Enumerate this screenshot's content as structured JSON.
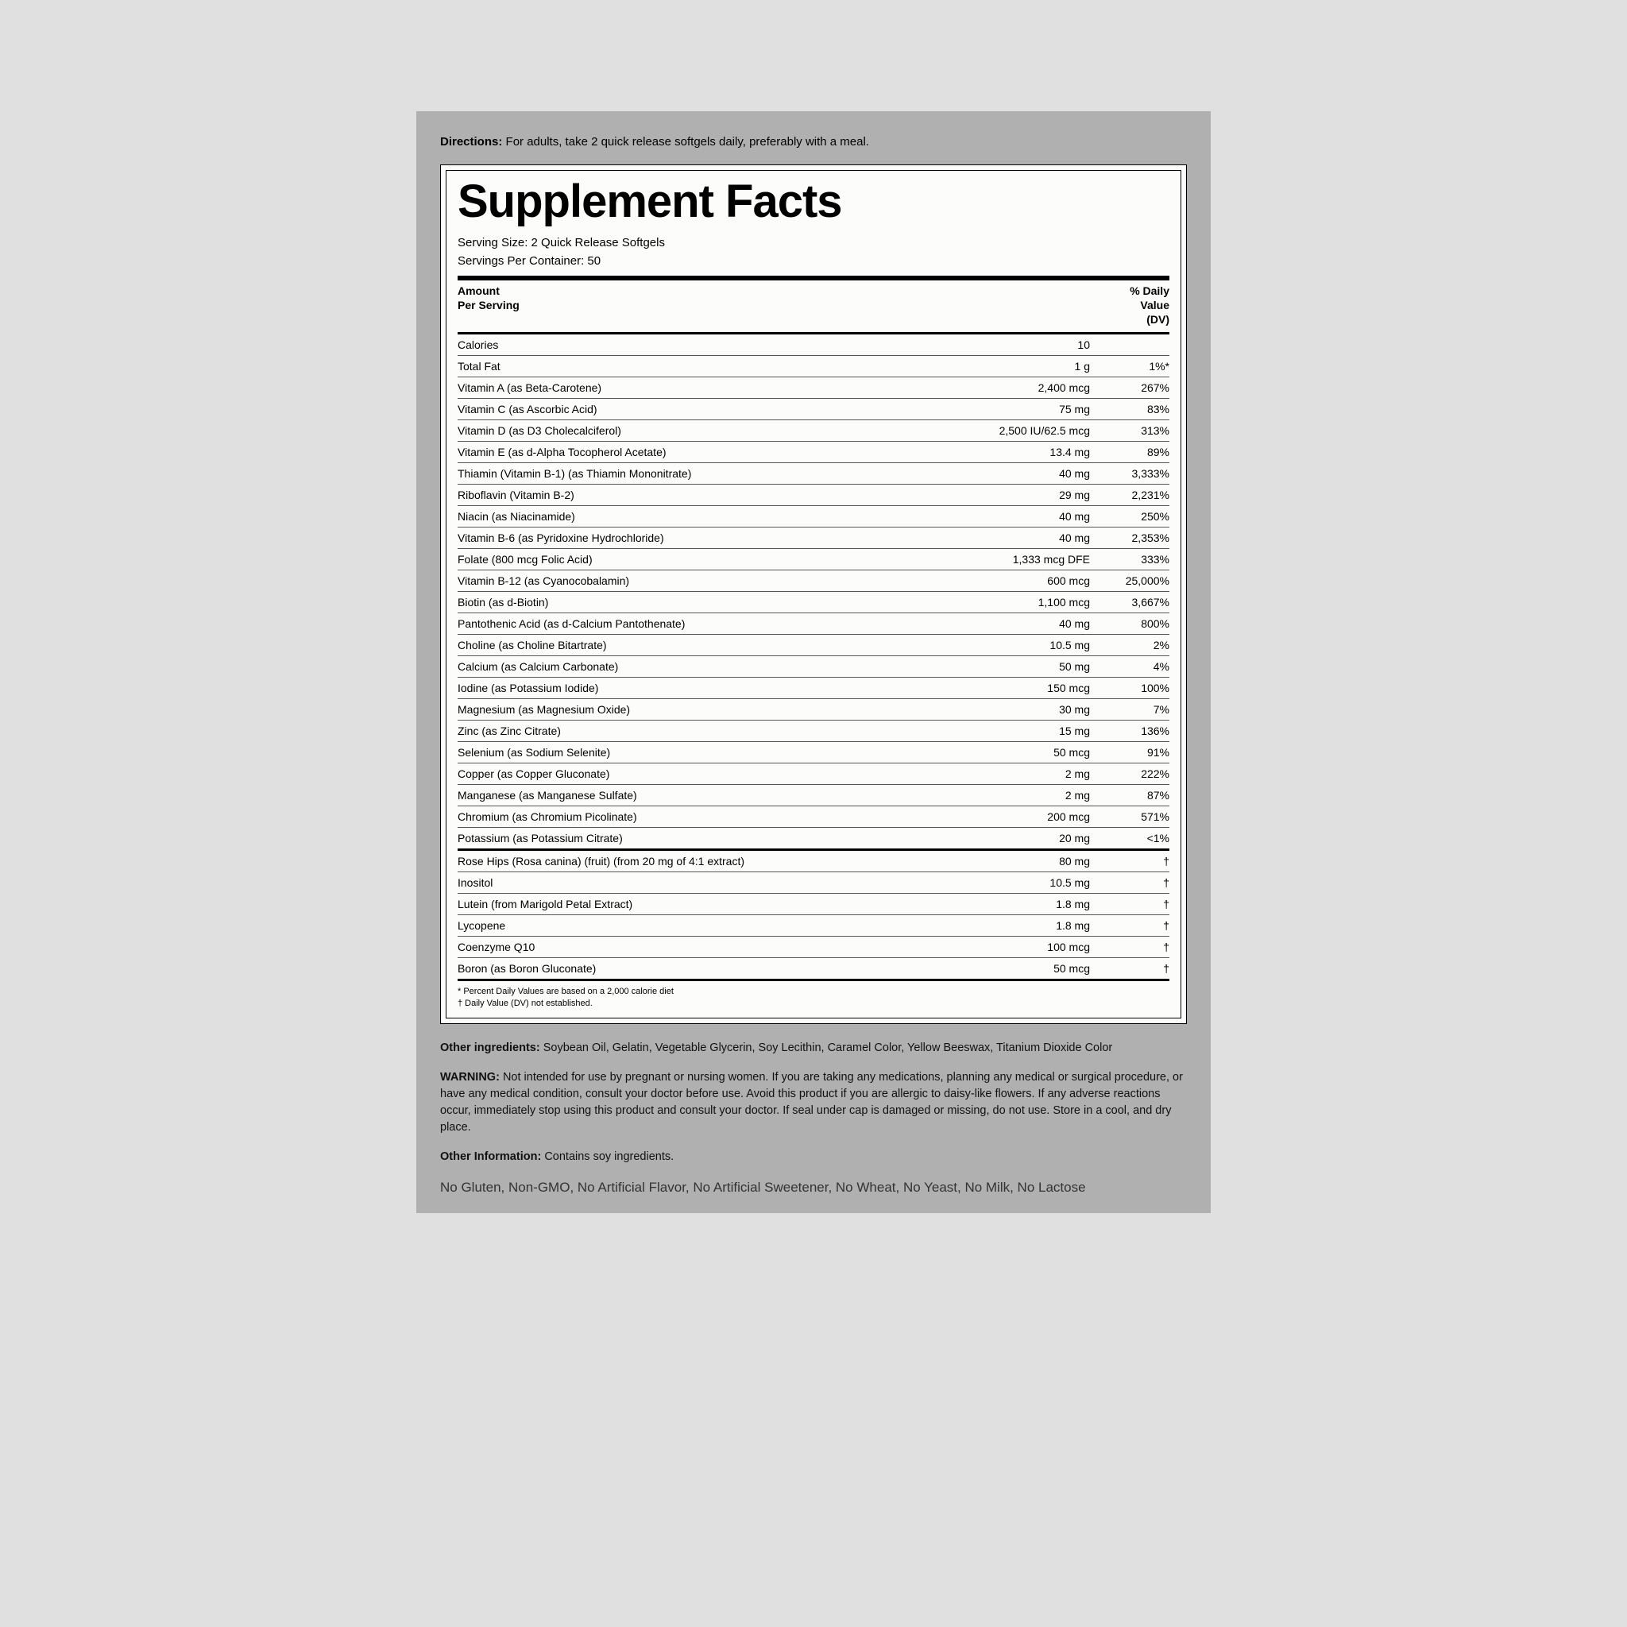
{
  "directions": {
    "label": "Directions:",
    "text": "For adults, take 2 quick release softgels daily, preferably with a meal."
  },
  "facts": {
    "title": "Supplement Facts",
    "serving_size": "Serving Size: 2 Quick Release Softgels",
    "servings_per_container": "Servings Per Container: 50",
    "header_left_1": "Amount",
    "header_left_2": "Per Serving",
    "header_right_1": "% Daily",
    "header_right_2": "Value",
    "header_right_3": "(DV)",
    "rows": [
      {
        "name": "Calories",
        "amount": "10",
        "dv": ""
      },
      {
        "name": "Total Fat",
        "amount": "1 g",
        "dv": "1%*"
      },
      {
        "name": "Vitamin A (as Beta-Carotene)",
        "amount": "2,400 mcg",
        "dv": "267%"
      },
      {
        "name": "Vitamin C (as Ascorbic Acid)",
        "amount": "75 mg",
        "dv": "83%"
      },
      {
        "name": "Vitamin D (as D3 Cholecalciferol)",
        "amount": "2,500 IU/62.5 mcg",
        "dv": "313%"
      },
      {
        "name": "Vitamin E (as d-Alpha Tocopherol Acetate)",
        "amount": "13.4 mg",
        "dv": "89%"
      },
      {
        "name": "Thiamin (Vitamin B-1) (as Thiamin Mononitrate)",
        "amount": "40 mg",
        "dv": "3,333%"
      },
      {
        "name": "Riboflavin (Vitamin B-2)",
        "amount": "29 mg",
        "dv": "2,231%"
      },
      {
        "name": "Niacin (as Niacinamide)",
        "amount": "40 mg",
        "dv": "250%"
      },
      {
        "name": "Vitamin B-6 (as Pyridoxine Hydrochloride)",
        "amount": "40 mg",
        "dv": "2,353%"
      },
      {
        "name": "Folate (800 mcg Folic Acid)",
        "amount": "1,333 mcg DFE",
        "dv": "333%"
      },
      {
        "name": "Vitamin B-12 (as Cyanocobalamin)",
        "amount": "600 mcg",
        "dv": "25,000%"
      },
      {
        "name": "Biotin (as d-Biotin)",
        "amount": "1,100 mcg",
        "dv": "3,667%"
      },
      {
        "name": "Pantothenic Acid (as d-Calcium Pantothenate)",
        "amount": "40 mg",
        "dv": "800%"
      },
      {
        "name": "Choline (as Choline Bitartrate)",
        "amount": "10.5 mg",
        "dv": "2%"
      },
      {
        "name": "Calcium (as Calcium Carbonate)",
        "amount": "50 mg",
        "dv": "4%"
      },
      {
        "name": "Iodine (as Potassium Iodide)",
        "amount": "150 mcg",
        "dv": "100%"
      },
      {
        "name": "Magnesium (as Magnesium Oxide)",
        "amount": "30 mg",
        "dv": "7%"
      },
      {
        "name": "Zinc (as Zinc Citrate)",
        "amount": "15 mg",
        "dv": "136%"
      },
      {
        "name": "Selenium (as Sodium Selenite)",
        "amount": "50 mcg",
        "dv": "91%"
      },
      {
        "name": "Copper (as Copper Gluconate)",
        "amount": "2 mg",
        "dv": "222%"
      },
      {
        "name": "Manganese (as Manganese Sulfate)",
        "amount": "2 mg",
        "dv": "87%"
      },
      {
        "name": "Chromium (as Chromium Picolinate)",
        "amount": "200 mcg",
        "dv": "571%"
      },
      {
        "name": "Potassium (as Potassium Citrate)",
        "amount": "20 mg",
        "dv": "<1%"
      }
    ],
    "rows2": [
      {
        "name": "Rose Hips (Rosa canina) (fruit) (from 20 mg of 4:1 extract)",
        "amount": "80 mg",
        "dv": "†"
      },
      {
        "name": "Inositol",
        "amount": "10.5 mg",
        "dv": "†"
      },
      {
        "name": "Lutein (from Marigold Petal Extract)",
        "amount": "1.8 mg",
        "dv": "†"
      },
      {
        "name": "Lycopene",
        "amount": "1.8 mg",
        "dv": "†"
      },
      {
        "name": "Coenzyme Q10",
        "amount": "100 mcg",
        "dv": "†"
      },
      {
        "name": "Boron (as Boron Gluconate)",
        "amount": "50 mcg",
        "dv": "†"
      }
    ],
    "footnote1": "* Percent Daily Values are based on a 2,000 calorie diet",
    "footnote2": "† Daily Value (DV) not established."
  },
  "other_ingredients": {
    "label": "Other ingredients:",
    "text": "Soybean Oil, Gelatin, Vegetable Glycerin, Soy Lecithin, Caramel Color, Yellow Beeswax, Titanium Dioxide Color"
  },
  "warning": {
    "label": "WARNING:",
    "text": "Not intended for use by pregnant or nursing women. If you are taking any medications, planning any medical or surgical procedure, or have any medical condition, consult your doctor before use. Avoid this product if you are allergic to daisy-like flowers. If any adverse reactions occur, immediately stop using this product and consult your doctor. If seal under cap is damaged or missing, do not use. Store in a cool, and dry place."
  },
  "other_info": {
    "label": "Other Information:",
    "text": "Contains soy ingredients."
  },
  "claims": "No Gluten, Non-GMO, No Artificial Flavor, No Artificial Sweetener, No Wheat, No Yeast, No Milk, No Lactose"
}
